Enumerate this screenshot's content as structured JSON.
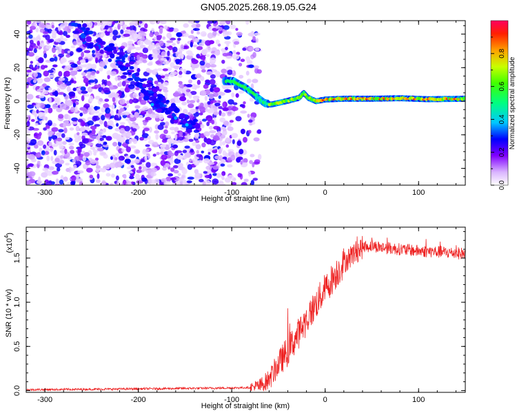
{
  "title": "GN05.2025.268.19.05.G24",
  "chart_data": [
    {
      "type": "heatmap",
      "name": "spectrogram",
      "xlabel": "Height of straight line (km)",
      "ylabel": "Frequency (Hz)",
      "xlim": [
        -320,
        150
      ],
      "ylim": [
        -50,
        48
      ],
      "xticks": [
        -300,
        -200,
        -100,
        0,
        100
      ],
      "yticks": [
        -40,
        -20,
        0,
        20,
        40
      ],
      "xtick_labels": [
        "-300",
        "-200",
        "-100",
        "0",
        "100"
      ],
      "ytick_labels": [
        "-40",
        "-20",
        "0",
        "20",
        "40"
      ],
      "colorbar": {
        "label": "Normalized spectral amplitude",
        "range": [
          0,
          1
        ],
        "ticks": [
          0.0,
          0.2,
          0.4,
          0.6,
          0.8
        ],
        "tick_labels": [
          "0.0",
          "0.2",
          "0.4",
          "0.6",
          "0.8"
        ]
      },
      "features": {
        "noise_region_x": [
          -320,
          -80
        ],
        "signal_track": [
          [
            -105,
            12
          ],
          [
            -98,
            12
          ],
          [
            -92,
            10
          ],
          [
            -85,
            8
          ],
          [
            -78,
            5
          ],
          [
            -72,
            2
          ],
          [
            -65,
            -1
          ],
          [
            -58,
            -2
          ],
          [
            -50,
            -1
          ],
          [
            -42,
            0
          ],
          [
            -35,
            1
          ],
          [
            -28,
            2
          ],
          [
            -23,
            5
          ],
          [
            -18,
            2
          ],
          [
            -10,
            0
          ],
          [
            0,
            1
          ],
          [
            20,
            1.5
          ],
          [
            50,
            1.5
          ],
          [
            80,
            1.8
          ],
          [
            110,
            1.2
          ],
          [
            150,
            1.5
          ]
        ],
        "diagonal_streak": [
          [
            -270,
            45
          ],
          [
            -230,
            30
          ],
          [
            -190,
            8
          ],
          [
            -170,
            -5
          ],
          [
            -140,
            -15
          ]
        ]
      }
    },
    {
      "type": "line",
      "name": "snr",
      "xlabel": "Height of straight line (km)",
      "ylabel": "SNR (10 * v/v)",
      "y_multiplier": "(x10",
      "y_multiplier_exp": "4",
      "y_multiplier_close": ")",
      "xlim": [
        -320,
        150
      ],
      "ylim": [
        -0.02,
        1.85
      ],
      "xticks": [
        -300,
        -200,
        -100,
        0,
        100
      ],
      "yticks": [
        0.0,
        0.5,
        1.0,
        1.5
      ],
      "xtick_labels": [
        "-300",
        "-200",
        "-100",
        "0",
        "100"
      ],
      "ytick_labels": [
        "0.0",
        "0.5",
        "1.0",
        "1.5"
      ],
      "color": "#ee2222",
      "series": [
        {
          "name": "SNR trend",
          "x": [
            -320,
            -250,
            -200,
            -150,
            -100,
            -80,
            -70,
            -60,
            -50,
            -40,
            -30,
            -20,
            -10,
            0,
            10,
            20,
            30,
            40,
            50,
            60,
            80,
            100,
            120,
            150
          ],
          "y": [
            0.01,
            0.015,
            0.02,
            0.025,
            0.03,
            0.035,
            0.05,
            0.12,
            0.3,
            0.45,
            0.62,
            0.8,
            0.98,
            1.15,
            1.3,
            1.45,
            1.55,
            1.62,
            1.64,
            1.62,
            1.6,
            1.58,
            1.57,
            1.55
          ]
        }
      ]
    }
  ]
}
